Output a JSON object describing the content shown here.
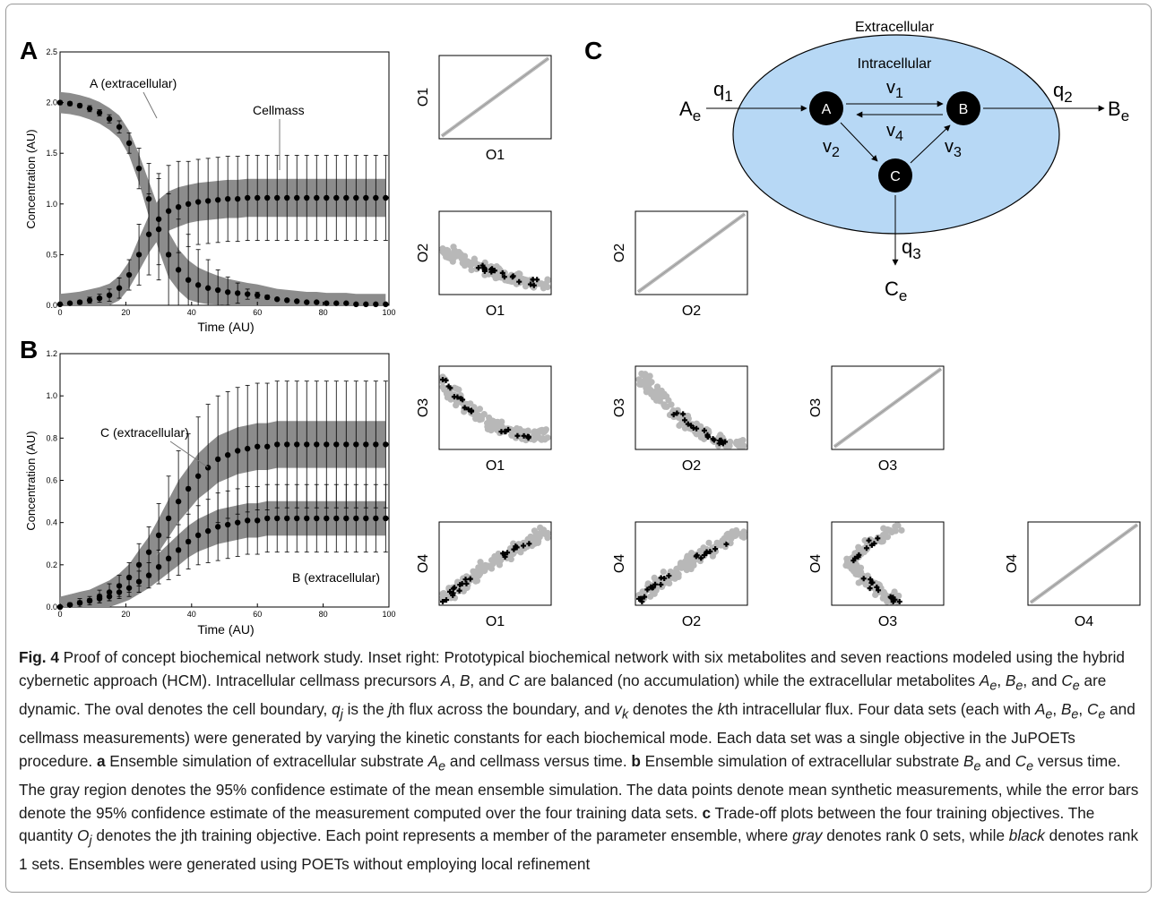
{
  "panels": {
    "A": {
      "label": "A",
      "ylabel": "Concentration (AU)",
      "xlabel": "Time (AU)",
      "annotations": [
        "A (extracellular)",
        "Cellmass"
      ]
    },
    "B": {
      "label": "B",
      "ylabel": "Concentration (AU)",
      "xlabel": "Time (AU)",
      "annotations": [
        "C (extracellular)",
        "B (extracellular)"
      ]
    },
    "C": {
      "label": "C",
      "outer_label": "Extracellular",
      "inner_label": "Intracellular",
      "nodes": [
        "A",
        "B",
        "C"
      ],
      "fluxes": [
        "q1",
        "q2",
        "q3",
        "v1",
        "v2",
        "v3",
        "v4"
      ],
      "external": [
        "Ae",
        "Be",
        "Ce"
      ]
    }
  },
  "chart_data": [
    {
      "type": "line",
      "panel": "A",
      "xlabel": "Time (AU)",
      "ylabel": "Concentration (AU)",
      "xlim": [
        0,
        100
      ],
      "ylim": [
        0,
        2.5
      ],
      "xticks": [
        0,
        20,
        40,
        60,
        80,
        100
      ],
      "yticks": [
        0.0,
        0.5,
        1.0,
        1.5,
        2.0,
        2.5
      ],
      "series": [
        {
          "name": "A (extracellular)",
          "x": [
            0,
            3,
            6,
            9,
            12,
            15,
            18,
            21,
            24,
            27,
            30,
            33,
            36,
            39,
            42,
            45,
            48,
            51,
            54,
            57,
            60,
            63,
            66,
            69,
            72,
            75,
            78,
            81,
            84,
            87,
            90,
            93,
            96,
            99
          ],
          "y": [
            2.0,
            1.99,
            1.97,
            1.94,
            1.9,
            1.84,
            1.76,
            1.6,
            1.35,
            1.05,
            0.75,
            0.5,
            0.35,
            0.25,
            0.2,
            0.17,
            0.15,
            0.13,
            0.12,
            0.11,
            0.1,
            0.08,
            0.06,
            0.05,
            0.04,
            0.03,
            0.03,
            0.02,
            0.02,
            0.02,
            0.01,
            0.01,
            0.01,
            0.01
          ],
          "err": [
            0.02,
            0.02,
            0.02,
            0.03,
            0.03,
            0.04,
            0.06,
            0.1,
            0.2,
            0.35,
            0.5,
            0.6,
            0.5,
            0.45,
            0.35,
            0.28,
            0.2,
            0.15,
            0.1,
            0.05,
            0.03,
            0.02,
            0.01,
            0.01,
            0.01,
            0.01,
            0.01,
            0.01,
            0.01,
            0.01,
            0.01,
            0.01,
            0.01,
            0.01
          ]
        },
        {
          "name": "Cellmass",
          "x": [
            0,
            3,
            6,
            9,
            12,
            15,
            18,
            21,
            24,
            27,
            30,
            33,
            36,
            39,
            42,
            45,
            48,
            51,
            54,
            57,
            60,
            63,
            66,
            69,
            72,
            75,
            78,
            81,
            84,
            87,
            90,
            93,
            96,
            99
          ],
          "y": [
            0.01,
            0.02,
            0.03,
            0.05,
            0.07,
            0.1,
            0.17,
            0.3,
            0.5,
            0.7,
            0.85,
            0.93,
            0.97,
            1.0,
            1.02,
            1.03,
            1.04,
            1.05,
            1.05,
            1.06,
            1.06,
            1.06,
            1.06,
            1.06,
            1.06,
            1.06,
            1.06,
            1.06,
            1.06,
            1.06,
            1.06,
            1.06,
            1.06,
            1.06
          ],
          "err": [
            0.01,
            0.01,
            0.02,
            0.03,
            0.04,
            0.06,
            0.1,
            0.15,
            0.3,
            0.4,
            0.45,
            0.45,
            0.45,
            0.42,
            0.42,
            0.42,
            0.42,
            0.42,
            0.42,
            0.42,
            0.42,
            0.42,
            0.42,
            0.42,
            0.42,
            0.42,
            0.42,
            0.42,
            0.42,
            0.42,
            0.42,
            0.42,
            0.42,
            0.42
          ]
        }
      ]
    },
    {
      "type": "line",
      "panel": "B",
      "xlabel": "Time (AU)",
      "ylabel": "Concentration (AU)",
      "xlim": [
        0,
        100
      ],
      "ylim": [
        0,
        1.2
      ],
      "xticks": [
        0,
        20,
        40,
        60,
        80,
        100
      ],
      "yticks": [
        0.0,
        0.2,
        0.4,
        0.6,
        0.8,
        1.0,
        1.2
      ],
      "series": [
        {
          "name": "C (extracellular)",
          "x": [
            0,
            3,
            6,
            9,
            12,
            15,
            18,
            21,
            24,
            27,
            30,
            33,
            36,
            39,
            42,
            45,
            48,
            51,
            54,
            57,
            60,
            63,
            66,
            69,
            72,
            75,
            78,
            81,
            84,
            87,
            90,
            93,
            96,
            99
          ],
          "y": [
            0.0,
            0.01,
            0.02,
            0.03,
            0.05,
            0.07,
            0.1,
            0.14,
            0.2,
            0.26,
            0.34,
            0.42,
            0.5,
            0.56,
            0.62,
            0.66,
            0.7,
            0.72,
            0.74,
            0.75,
            0.76,
            0.76,
            0.77,
            0.77,
            0.77,
            0.77,
            0.77,
            0.77,
            0.77,
            0.77,
            0.77,
            0.77,
            0.77,
            0.77
          ],
          "err": [
            0.0,
            0.01,
            0.02,
            0.02,
            0.03,
            0.04,
            0.05,
            0.07,
            0.1,
            0.12,
            0.15,
            0.2,
            0.24,
            0.26,
            0.28,
            0.3,
            0.3,
            0.3,
            0.3,
            0.3,
            0.3,
            0.3,
            0.3,
            0.3,
            0.3,
            0.3,
            0.3,
            0.3,
            0.3,
            0.3,
            0.3,
            0.3,
            0.3,
            0.3
          ]
        },
        {
          "name": "B (extracellular)",
          "x": [
            0,
            3,
            6,
            9,
            12,
            15,
            18,
            21,
            24,
            27,
            30,
            33,
            36,
            39,
            42,
            45,
            48,
            51,
            54,
            57,
            60,
            63,
            66,
            69,
            72,
            75,
            78,
            81,
            84,
            87,
            90,
            93,
            96,
            99
          ],
          "y": [
            0.0,
            0.01,
            0.02,
            0.03,
            0.04,
            0.05,
            0.07,
            0.09,
            0.12,
            0.15,
            0.19,
            0.23,
            0.27,
            0.31,
            0.34,
            0.36,
            0.38,
            0.39,
            0.4,
            0.41,
            0.41,
            0.42,
            0.42,
            0.42,
            0.42,
            0.42,
            0.42,
            0.42,
            0.42,
            0.42,
            0.42,
            0.42,
            0.42,
            0.42
          ],
          "err": [
            0.0,
            0.01,
            0.01,
            0.01,
            0.02,
            0.02,
            0.03,
            0.04,
            0.05,
            0.06,
            0.08,
            0.1,
            0.12,
            0.13,
            0.14,
            0.15,
            0.16,
            0.16,
            0.16,
            0.16,
            0.16,
            0.16,
            0.16,
            0.16,
            0.16,
            0.16,
            0.16,
            0.16,
            0.16,
            0.16,
            0.16,
            0.16,
            0.16,
            0.16
          ]
        }
      ]
    },
    {
      "type": "scatter",
      "panel": "C",
      "grid": "lower-triangular 4x4 trade-off plots",
      "objectives": [
        "O1",
        "O2",
        "O3",
        "O4"
      ],
      "colors": {
        "rank0": "#b8b8b8",
        "rank1": "#000000"
      }
    }
  ],
  "caption": {
    "fig_label": "Fig. 4",
    "text_html": " Proof of concept biochemical network study. Inset right: Prototypical biochemical network with six metabolites and seven reactions modeled using the hybrid cybernetic approach (HCM). Intracellular cellmass precursors <i>A</i>, <i>B</i>, and <i>C</i> are balanced (no accumulation) while the extracellular metabolites <i>A<sub>e</sub></i>, <i>B<sub>e</sub></i>, and <i>C<sub>e</sub></i> are dynamic. The oval denotes the cell boundary, <i>q<sub>j</sub></i> is the <i>j</i>th flux across the boundary, and <i>v<sub>k</sub></i> denotes the <i>k</i>th intracellular flux. Four data sets (each with <i>A<sub>e</sub></i>, <i>B<sub>e</sub></i>, <i>C<sub>e</sub></i> and cellmass measurements) were generated by varying the kinetic constants for each biochemical mode. Each data set was a single objective in the JuPOETs procedure. <b>a</b> Ensemble simulation of extracellular substrate <i>A<sub>e</sub></i> and cellmass versus time. <b>b</b> Ensemble simulation of extracellular substrate <i>B<sub>e</sub></i> and <i>C<sub>e</sub></i> versus time. The gray region denotes the 95% confidence estimate of the mean ensemble simulation. The data points denote mean synthetic measurements, while the error bars denote the 95% confidence estimate of the measurement computed over the four training data sets. <b>c</b> Trade-off plots between the four training objectives. The quantity <i>O<sub>j</sub></i> denotes the jth training objective. Each point represents a member of the parameter ensemble, where <i>gray</i> denotes rank 0 sets, while <i>black</i> denotes rank 1 sets. Ensembles were generated using POETs without employing local refinement"
  }
}
